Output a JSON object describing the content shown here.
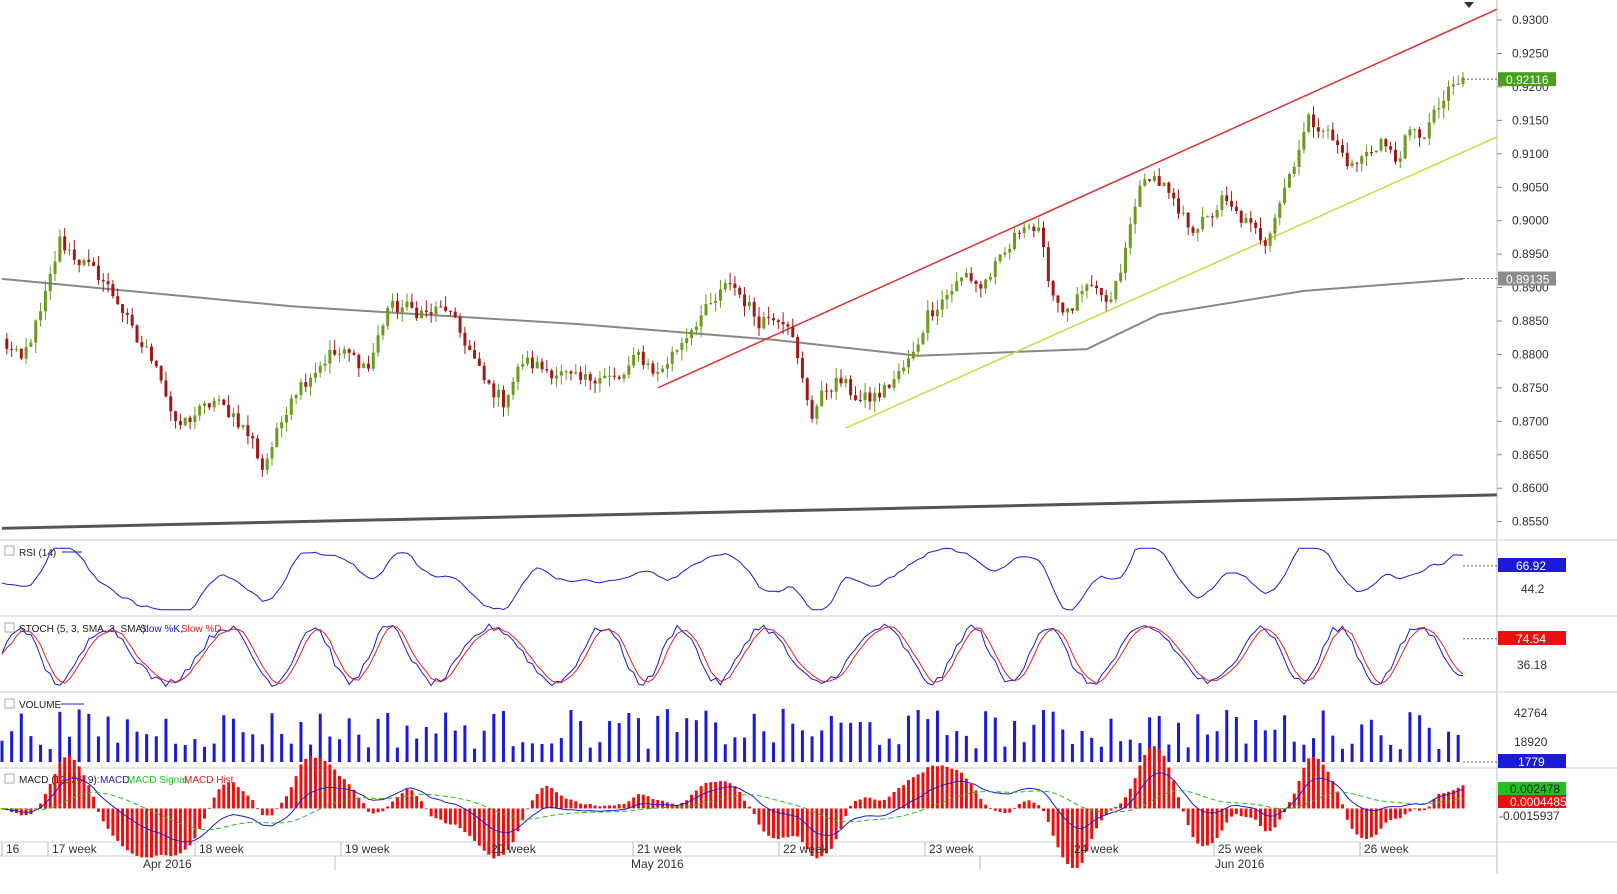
{
  "instrument_note": "",
  "price_panel": {
    "price_ticks": [
      "0.9300",
      "0.9250",
      "0.9200",
      "0.9150",
      "0.9100",
      "0.9050",
      "0.9000",
      "0.8950",
      "0.8900",
      "0.8850",
      "0.8800",
      "0.8750",
      "0.8700",
      "0.8650",
      "0.8600",
      "0.8550"
    ],
    "current_price": "0.92116",
    "ma_value": "0.89135",
    "colors": {
      "up": "#6a9a1e",
      "down": "#a01818",
      "channel_upper": "#e03030",
      "channel_lower": "#c8dc40",
      "ma": "#888888",
      "trend": "#555555",
      "price_tag": "#4aa01e",
      "ma_tag": "#8c8c8c"
    }
  },
  "rsi_panel": {
    "label": "RSI (14)",
    "ticks": [
      "44.2"
    ],
    "current": "66.92",
    "color": "#1a1ad8"
  },
  "stoch_panel": {
    "label": "STOCH (5, 3, SMA, 3, SMA):",
    "k_label": "Slow %K,",
    "d_label": "Slow %D",
    "ticks": [
      "36.18"
    ],
    "current": "74.54",
    "k_color": "#1a1ad8",
    "d_color": "#e02020"
  },
  "volume_panel": {
    "label": "VOLUME",
    "ticks": [
      "42764",
      "18920"
    ],
    "current": "1779",
    "color": "#1a1ad8"
  },
  "macd_panel": {
    "label": "MACD (12, 26, 9):",
    "macd_label": "MACD,",
    "signal_label": "MACD Signal,",
    "hist_label": "MACD Hist",
    "ticks": [
      "-0.0015937"
    ],
    "macd_value": "0.002478",
    "hist_value": "0.0004485"
  },
  "time_axis": {
    "weeks": [
      "16",
      "17 week",
      "18 week",
      "19 week",
      "20 week",
      "21 week",
      "22 week",
      "23 week",
      "24 week",
      "25 week",
      "26 week"
    ],
    "months": [
      "Apr 2016",
      "May 2016",
      "Jun 2016"
    ]
  },
  "chart_data": {
    "type": "candlestick",
    "x_unit": "trading bar (approx. 4-hour), weeks 16–26 of 2016",
    "ylim": [
      0.853,
      0.933
    ],
    "close_path": [
      [
        0,
        0.882
      ],
      [
        4,
        0.879
      ],
      [
        8,
        0.886
      ],
      [
        12,
        0.897
      ],
      [
        16,
        0.894
      ],
      [
        20,
        0.892
      ],
      [
        24,
        0.888
      ],
      [
        28,
        0.882
      ],
      [
        32,
        0.879
      ],
      [
        36,
        0.869
      ],
      [
        40,
        0.871
      ],
      [
        44,
        0.873
      ],
      [
        48,
        0.871
      ],
      [
        52,
        0.867
      ],
      [
        54,
        0.863
      ],
      [
        57,
        0.868
      ],
      [
        60,
        0.874
      ],
      [
        64,
        0.877
      ],
      [
        68,
        0.88
      ],
      [
        72,
        0.88
      ],
      [
        76,
        0.878
      ],
      [
        80,
        0.887
      ],
      [
        84,
        0.887
      ],
      [
        88,
        0.886
      ],
      [
        92,
        0.887
      ],
      [
        96,
        0.882
      ],
      [
        100,
        0.876
      ],
      [
        104,
        0.873
      ],
      [
        108,
        0.879
      ],
      [
        112,
        0.878
      ],
      [
        116,
        0.877
      ],
      [
        120,
        0.876
      ],
      [
        124,
        0.877
      ],
      [
        128,
        0.876
      ],
      [
        132,
        0.88
      ],
      [
        136,
        0.877
      ],
      [
        140,
        0.881
      ],
      [
        144,
        0.885
      ],
      [
        148,
        0.888
      ],
      [
        151,
        0.891
      ],
      [
        154,
        0.888
      ],
      [
        157,
        0.885
      ],
      [
        160,
        0.886
      ],
      [
        163,
        0.885
      ],
      [
        166,
        0.876
      ],
      [
        168,
        0.871
      ],
      [
        171,
        0.875
      ],
      [
        174,
        0.876
      ],
      [
        178,
        0.873
      ],
      [
        182,
        0.874
      ],
      [
        186,
        0.877
      ],
      [
        189,
        0.88
      ],
      [
        192,
        0.886
      ],
      [
        196,
        0.889
      ],
      [
        200,
        0.892
      ],
      [
        203,
        0.89
      ],
      [
        206,
        0.893
      ],
      [
        209,
        0.896
      ],
      [
        212,
        0.9
      ],
      [
        215,
        0.898
      ],
      [
        218,
        0.889
      ],
      [
        221,
        0.886
      ],
      [
        224,
        0.889
      ],
      [
        227,
        0.89
      ],
      [
        229,
        0.887
      ],
      [
        232,
        0.892
      ],
      [
        235,
        0.903
      ],
      [
        238,
        0.907
      ],
      [
        241,
        0.905
      ],
      [
        244,
        0.901
      ],
      [
        247,
        0.899
      ],
      [
        250,
        0.9
      ],
      [
        253,
        0.903
      ],
      [
        256,
        0.901
      ],
      [
        259,
        0.899
      ],
      [
        262,
        0.897
      ],
      [
        265,
        0.903
      ],
      [
        268,
        0.909
      ],
      [
        271,
        0.915
      ],
      [
        274,
        0.914
      ],
      [
        277,
        0.911
      ],
      [
        280,
        0.908
      ],
      [
        283,
        0.91
      ],
      [
        286,
        0.912
      ],
      [
        289,
        0.909
      ],
      [
        292,
        0.913
      ],
      [
        295,
        0.913
      ],
      [
        298,
        0.917
      ],
      [
        301,
        0.92
      ],
      [
        303,
        0.921
      ]
    ],
    "ma_200": [
      [
        0,
        0.8913
      ],
      [
        60,
        0.8872
      ],
      [
        120,
        0.8845
      ],
      [
        160,
        0.8822
      ],
      [
        190,
        0.8798
      ],
      [
        225,
        0.8808
      ],
      [
        240,
        0.886
      ],
      [
        270,
        0.8895
      ],
      [
        303,
        0.8913
      ]
    ],
    "trendlines": [
      {
        "name": "Upper channel",
        "from": [
          136,
          0.875
        ],
        "to": [
          310,
          0.9316
        ]
      },
      {
        "name": "Lower channel",
        "from": [
          175,
          0.869
        ],
        "to": [
          310,
          0.9125
        ]
      },
      {
        "name": "Long-term support",
        "from": [
          0,
          0.854
        ],
        "to": [
          310,
          0.859
        ]
      }
    ],
    "rsi": {
      "range": [
        25,
        85
      ],
      "current": 66.92
    },
    "stoch": {
      "range": [
        0,
        100
      ],
      "current": 74.54
    },
    "volume": {
      "range": [
        0,
        60000
      ],
      "current": 1779
    },
    "macd": {
      "range": [
        -0.003,
        0.0035
      ],
      "macd_current": 0.002478,
      "hist_current": 0.0004485
    }
  }
}
